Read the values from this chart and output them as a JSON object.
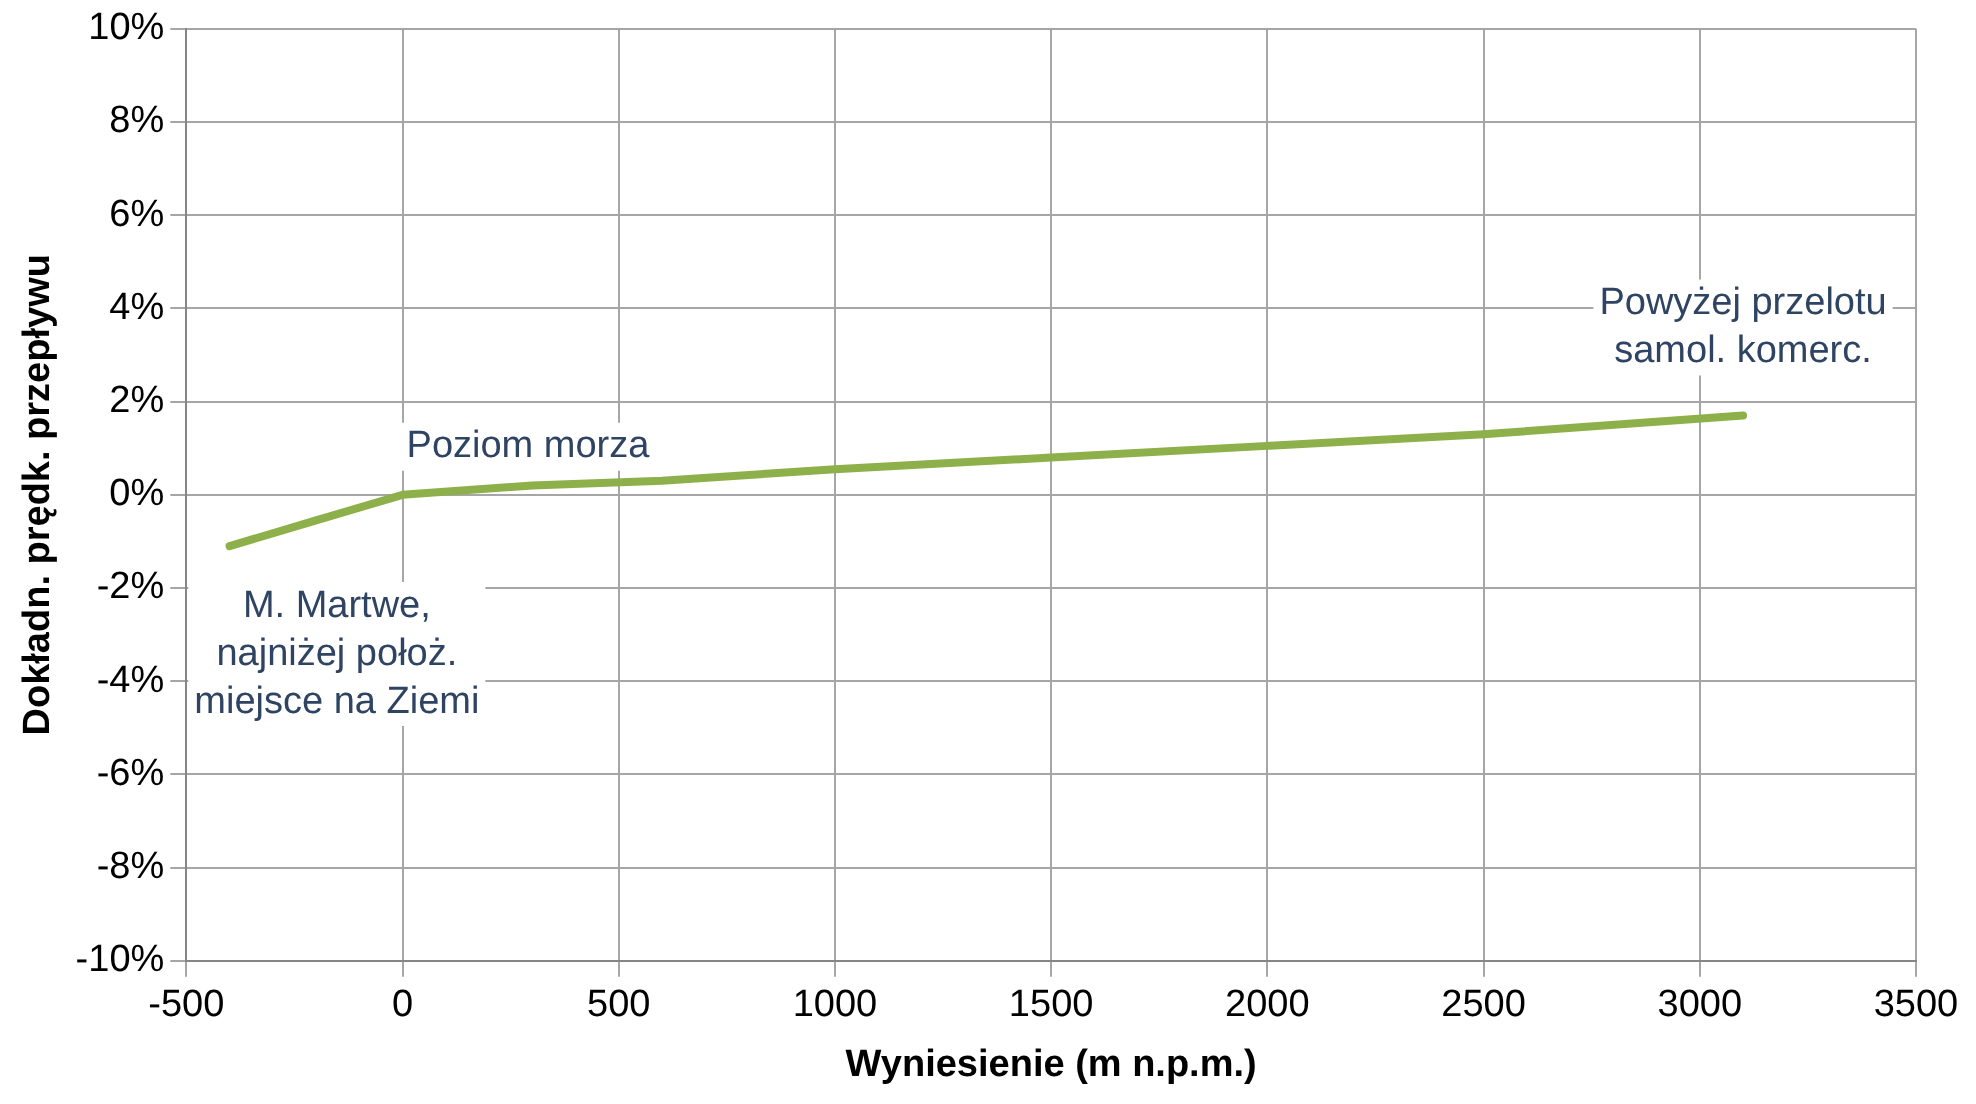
{
  "chart_data": {
    "type": "line",
    "xlabel": "Wyniesienie (m n.p.m.)",
    "ylabel": "Dokładn. prędk. przepływu",
    "x": [
      -400,
      -200,
      0,
      300,
      600,
      1000,
      1500,
      2000,
      2500,
      3100
    ],
    "series": [
      {
        "color": "#8db04a",
        "values": [
          -1.1,
          -0.55,
          0,
          0.2,
          0.3,
          0.55,
          0.8,
          1.05,
          1.3,
          1.7
        ]
      }
    ],
    "xlim": [
      -500,
      3500
    ],
    "xticks": [
      -500,
      0,
      500,
      1000,
      1500,
      2000,
      2500,
      3000,
      3500
    ],
    "ylim": [
      -10,
      10
    ],
    "yticks": [
      {
        "value": -10,
        "label": "-10%"
      },
      {
        "value": -8,
        "label": "-8%"
      },
      {
        "value": -6,
        "label": "-6%"
      },
      {
        "value": -4,
        "label": "-4%"
      },
      {
        "value": -2,
        "label": "-2%"
      },
      {
        "value": 0,
        "label": "0%"
      },
      {
        "value": 2,
        "label": "2%"
      },
      {
        "value": 4,
        "label": "4%"
      },
      {
        "value": 6,
        "label": "6%"
      },
      {
        "value": 8,
        "label": "8%"
      },
      {
        "value": 10,
        "label": "10%"
      }
    ],
    "annotations": [
      {
        "text": "Poziom morza",
        "x": 0,
        "y": 0
      },
      {
        "text": "M. Martwe,\nnajniżej położ.\nmiejsce na Ziemi",
        "x": -400,
        "y": -1.1
      },
      {
        "text": "Powyżej przelotu\nsamol. komerc.",
        "x": 3100,
        "y": 1.7
      }
    ],
    "grid": true,
    "legend": false,
    "marker": "none",
    "line_style": "solid"
  }
}
